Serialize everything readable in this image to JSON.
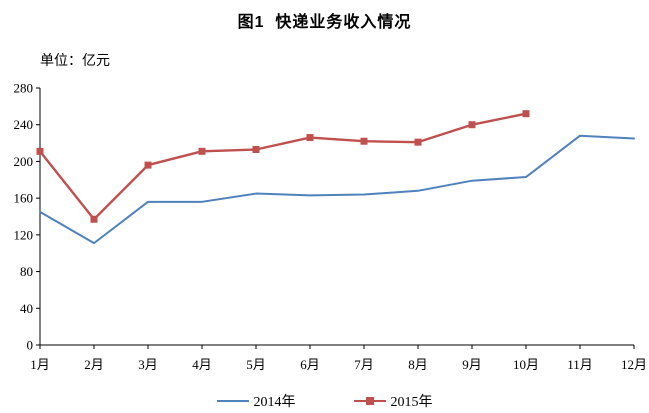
{
  "title": "图1  快递业务收入情况",
  "unit_label": "单位：亿元",
  "chart_data": {
    "type": "line",
    "title": "图1  快递业务收入情况",
    "ylabel_unit": "单位：亿元",
    "categories": [
      "1月",
      "2月",
      "3月",
      "4月",
      "5月",
      "6月",
      "7月",
      "8月",
      "9月",
      "10月",
      "11月",
      "12月"
    ],
    "series": [
      {
        "name": "2014年",
        "color": "#4f81bd",
        "marker": "none",
        "values": [
          145,
          111,
          156,
          156,
          165,
          163,
          164,
          168,
          179,
          183,
          228,
          225
        ]
      },
      {
        "name": "2015年",
        "color": "#c0504d",
        "marker": "square",
        "values": [
          211,
          137,
          196,
          211,
          213,
          226,
          222,
          221,
          240,
          252
        ]
      }
    ],
    "ylim": [
      0,
      280
    ],
    "yticks": [
      0,
      40,
      80,
      120,
      160,
      200,
      240,
      280
    ],
    "grid": false,
    "legend_position": "bottom",
    "axis_color": "#000000"
  }
}
